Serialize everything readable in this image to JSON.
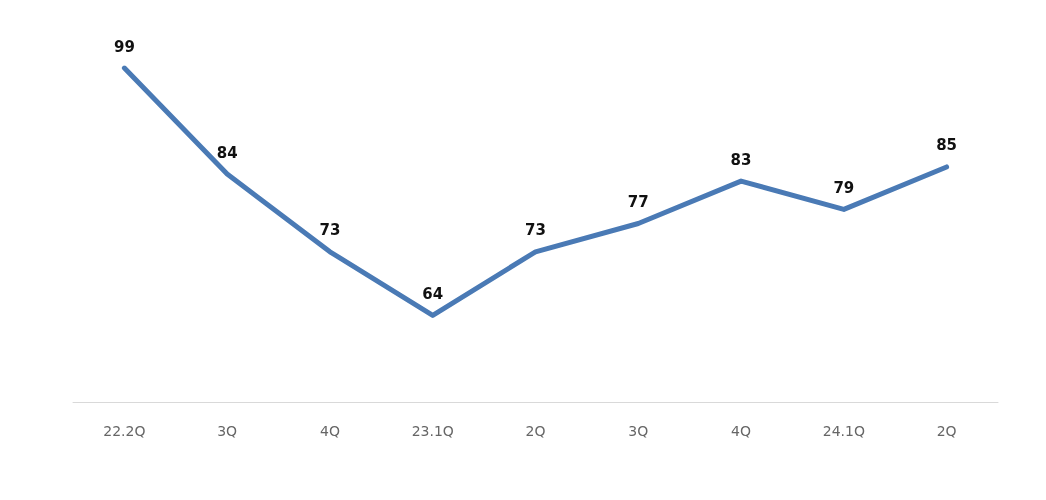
{
  "chart_data": {
    "type": "line",
    "categories": [
      "22.2Q",
      "3Q",
      "4Q",
      "23.1Q",
      "2Q",
      "3Q",
      "4Q",
      "24.1Q",
      "2Q"
    ],
    "series": [
      {
        "color": "#4a7ab5",
        "values": [
          99,
          84,
          73,
          64,
          73,
          77,
          83,
          79,
          85
        ]
      }
    ],
    "data_labels": true,
    "grid": false,
    "marker": "none",
    "line_style": "solid"
  }
}
